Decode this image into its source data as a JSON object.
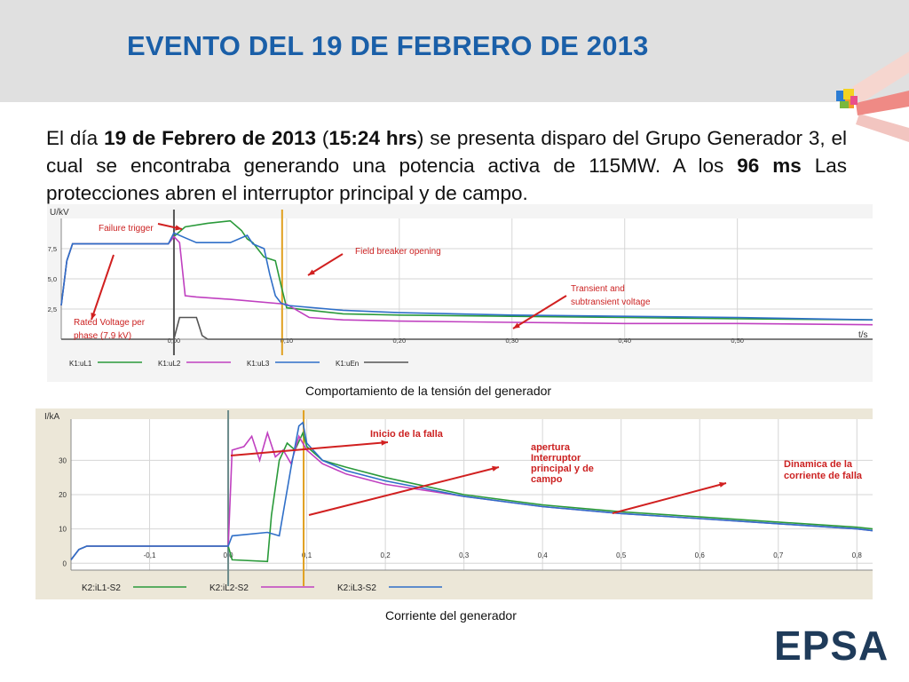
{
  "slide": {
    "title": "EVENTO DEL 19 DE FEBRERO DE 2013",
    "brand": "EPSA",
    "accent_color": "#1a5fa8",
    "body": {
      "p1": "El día ",
      "b1": "19 de Febrero de 2013",
      "p2": " (",
      "b2": "15:24  hrs",
      "p3": ") se presenta disparo del Grupo Generador 3, el cual se encontraba generando una potencia activa de 115MW. A los ",
      "b3": "96 ms",
      "p4": " Las protecciones abren el interruptor principal y de campo."
    },
    "captions": {
      "voltage": "Comportamiento de la tensión del generador",
      "current": "Corriente del generador"
    }
  },
  "chart_data": [
    {
      "type": "line",
      "ylabel": "U/kV",
      "xlabel": "t/s",
      "xlim": [
        -0.1,
        0.62
      ],
      "ylim": [
        0,
        10
      ],
      "x_ticks": [
        "0,00",
        "0,10",
        "0,20",
        "0,30",
        "0,40",
        "0,50"
      ],
      "x_tick_values": [
        0.0,
        0.1,
        0.2,
        0.3,
        0.4,
        0.5
      ],
      "y_ticks": [
        "2,5",
        "5,0",
        "7,5"
      ],
      "y_tick_values": [
        2.5,
        5.0,
        7.5
      ],
      "grid": true,
      "markers": [
        {
          "x": 0.0,
          "color": "#555555"
        },
        {
          "x": 0.096,
          "color": "#e0a020"
        }
      ],
      "annotations": [
        {
          "text": "Failure trigger",
          "color": "#cc2222"
        },
        {
          "text": "Field breaker opening",
          "color": "#cc2222"
        },
        {
          "text": "Transient and",
          "color": "#cc2222"
        },
        {
          "text": "subtransient voltage",
          "color": "#cc2222"
        },
        {
          "text": "Rated Voltage per",
          "color": "#cc2222"
        },
        {
          "text": "phase (7.9 kV)",
          "color": "#cc2222"
        }
      ],
      "series": [
        {
          "name": "K1:uL1",
          "color": "#2a9a3a",
          "x": [
            -0.1,
            -0.095,
            -0.09,
            -0.005,
            0.0,
            0.01,
            0.03,
            0.05,
            0.06,
            0.065,
            0.07,
            0.08,
            0.09,
            0.095,
            0.1,
            0.15,
            0.2,
            0.3,
            0.4,
            0.5,
            0.62
          ],
          "y": [
            2.8,
            6.5,
            7.9,
            7.9,
            8.5,
            9.3,
            9.6,
            9.8,
            9.0,
            8.3,
            8.0,
            6.8,
            6.5,
            4.5,
            2.6,
            2.1,
            2.0,
            1.9,
            1.8,
            1.7,
            1.6
          ]
        },
        {
          "name": "K1:uL2",
          "color": "#c040c0",
          "x": [
            -0.1,
            -0.095,
            -0.09,
            -0.005,
            0.0,
            0.005,
            0.01,
            0.02,
            0.05,
            0.1,
            0.12,
            0.15,
            0.2,
            0.3,
            0.4,
            0.5,
            0.62
          ],
          "y": [
            2.8,
            6.5,
            7.9,
            7.9,
            8.5,
            8.0,
            3.6,
            3.5,
            3.3,
            2.9,
            1.8,
            1.6,
            1.5,
            1.4,
            1.3,
            1.3,
            1.2
          ]
        },
        {
          "name": "K1:uL3",
          "color": "#2f6fc8",
          "x": [
            -0.1,
            -0.095,
            -0.09,
            -0.005,
            0.0,
            0.01,
            0.02,
            0.05,
            0.065,
            0.07,
            0.08,
            0.085,
            0.09,
            0.095,
            0.1,
            0.15,
            0.2,
            0.3,
            0.4,
            0.5,
            0.62
          ],
          "y": [
            2.8,
            6.5,
            7.9,
            7.9,
            8.8,
            8.4,
            8.0,
            8.0,
            8.6,
            7.9,
            7.5,
            5.4,
            3.6,
            3.0,
            2.8,
            2.4,
            2.2,
            2.0,
            1.9,
            1.8,
            1.6
          ]
        },
        {
          "name": "K1:uEn",
          "color": "#555555",
          "x": [
            -0.1,
            0.0,
            0.005,
            0.02,
            0.025,
            0.03,
            0.62
          ],
          "y": [
            0.0,
            0.0,
            1.8,
            1.8,
            0.3,
            0.0,
            0.0
          ]
        }
      ]
    },
    {
      "type": "line",
      "ylabel": "I/kA",
      "xlim": [
        -0.2,
        0.82
      ],
      "ylim": [
        -2,
        42
      ],
      "x_ticks": [
        "-0,1",
        "0,0",
        "0,1",
        "0,2",
        "0,3",
        "0,4",
        "0,5",
        "0,6",
        "0,7",
        "0,8"
      ],
      "x_tick_values": [
        -0.1,
        0.0,
        0.1,
        0.2,
        0.3,
        0.4,
        0.5,
        0.6,
        0.7,
        0.8
      ],
      "y_ticks": [
        "0",
        "10",
        "20",
        "30"
      ],
      "y_tick_values": [
        0,
        10,
        20,
        30
      ],
      "grid": true,
      "markers": [
        {
          "x": 0.0,
          "color": "#6a8a8a"
        },
        {
          "x": 0.096,
          "color": "#e0a020"
        }
      ],
      "annotations": [
        {
          "text": "Inicio de la falla",
          "color": "#cc2222"
        },
        {
          "text": "apertura",
          "color": "#cc2222"
        },
        {
          "text": "Interruptor",
          "color": "#cc2222"
        },
        {
          "text": "principal y de",
          "color": "#cc2222"
        },
        {
          "text": "campo",
          "color": "#cc2222"
        },
        {
          "text": "Dinamica de la",
          "color": "#cc2222"
        },
        {
          "text": "corriente de falla",
          "color": "#cc2222"
        }
      ],
      "series": [
        {
          "name": "K2:iL1-S2",
          "color": "#2a9a3a",
          "x": [
            -0.2,
            -0.19,
            -0.18,
            0.0,
            0.005,
            0.05,
            0.055,
            0.065,
            0.075,
            0.085,
            0.095,
            0.1,
            0.12,
            0.15,
            0.2,
            0.3,
            0.4,
            0.5,
            0.6,
            0.7,
            0.8,
            0.82
          ],
          "y": [
            1,
            4,
            5,
            5,
            1,
            0.5,
            14,
            30,
            35,
            33,
            38,
            34,
            30,
            28,
            25,
            20,
            17,
            15,
            13.5,
            12,
            10.5,
            10
          ]
        },
        {
          "name": "K2:iL2-S2",
          "color": "#c040c0",
          "x": [
            -0.2,
            -0.19,
            -0.18,
            0.0,
            0.005,
            0.02,
            0.03,
            0.04,
            0.05,
            0.06,
            0.07,
            0.08,
            0.09,
            0.1,
            0.12,
            0.15,
            0.2,
            0.3,
            0.4,
            0.5,
            0.6,
            0.7,
            0.8,
            0.82
          ],
          "y": [
            1,
            4,
            5,
            5,
            33,
            34,
            37,
            30,
            38,
            31,
            33,
            29,
            37,
            33,
            29,
            26,
            23,
            19.5,
            16.5,
            14.5,
            13,
            11.5,
            10,
            9.5
          ]
        },
        {
          "name": "K2:iL3-S2",
          "color": "#2f6fc8",
          "x": [
            -0.2,
            -0.19,
            -0.18,
            0.0,
            0.005,
            0.05,
            0.065,
            0.08,
            0.09,
            0.095,
            0.1,
            0.12,
            0.15,
            0.2,
            0.3,
            0.4,
            0.5,
            0.6,
            0.7,
            0.8,
            0.82
          ],
          "y": [
            1,
            4,
            5,
            5,
            8,
            9,
            8,
            28,
            40,
            41,
            35,
            30,
            27,
            24,
            19.5,
            16.5,
            14.5,
            13,
            11.5,
            10,
            9.5
          ]
        }
      ]
    }
  ]
}
